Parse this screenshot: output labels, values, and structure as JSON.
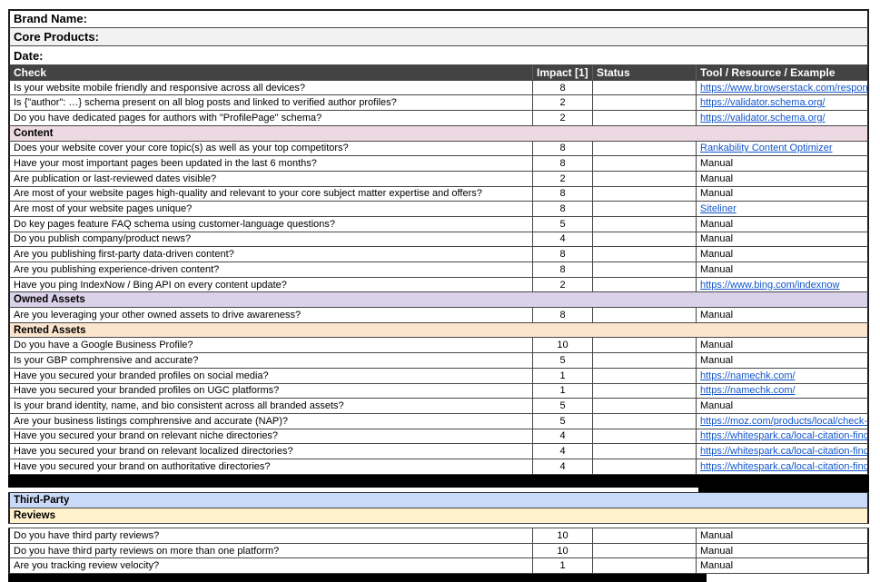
{
  "theme": {
    "header_bg": "#434343",
    "header_text": "#ffffff",
    "link_color": "#1155cc",
    "section_content_bg": "#ecd9e1",
    "section_owned_bg": "#d9d2e9",
    "section_rented_bg": "#fce5cd",
    "section_thirdparty_bg": "#c9daf8",
    "section_reviews_bg": "#fff2cc",
    "title_alt_bg": "#f2f2f2"
  },
  "columns": [
    "Check",
    "Impact [1]",
    "Status",
    "Tool / Resource / Example"
  ],
  "rows": [
    {
      "type": "title",
      "label": "Brand Name:",
      "bg": "#ffffff"
    },
    {
      "type": "title",
      "label": "Core Products:",
      "bg": "#f2f2f2"
    },
    {
      "type": "title",
      "label": "Date:",
      "bg": "#ffffff"
    },
    {
      "type": "header"
    },
    {
      "type": "item",
      "check": "Is your website mobile friendly and responsive across all devices?",
      "impact": "8",
      "status": "",
      "tool": "https://www.browserstack.com/respons",
      "tool_is_link": true
    },
    {
      "type": "item",
      "check": "Is {\"author\": …} schema present on all blog posts and linked to verified author profiles?",
      "impact": "2",
      "status": "",
      "tool": "https://validator.schema.org/",
      "tool_is_link": true
    },
    {
      "type": "item",
      "check": "Do you have dedicated pages for authors with \"ProfilePage\" schema?",
      "impact": "2",
      "status": "",
      "tool": "https://validator.schema.org/",
      "tool_is_link": true
    },
    {
      "type": "section",
      "label": "Content",
      "bg": "#ecd9e1"
    },
    {
      "type": "item",
      "check": "Does your website cover your core topic(s) as well as your top competitors?",
      "impact": "8",
      "status": "",
      "tool": "Rankability Content Optimizer",
      "tool_is_link": true
    },
    {
      "type": "item",
      "check": "Have your most important pages been updated in the last 6 months?",
      "impact": "8",
      "status": "",
      "tool": "Manual",
      "tool_is_link": false
    },
    {
      "type": "item",
      "check": "Are publication or last-reviewed dates visible?",
      "impact": "2",
      "status": "",
      "tool": "Manual",
      "tool_is_link": false
    },
    {
      "type": "item",
      "check": "Are most of your website pages high-quality and relevant to your core subject matter expertise and offers?",
      "impact": "8",
      "status": "",
      "tool": "Manual",
      "tool_is_link": false
    },
    {
      "type": "item",
      "check": "Are most of your website pages unique?",
      "impact": "8",
      "status": "",
      "tool": "Siteliner",
      "tool_is_link": true
    },
    {
      "type": "item",
      "check": "Do key pages feature FAQ schema using customer-language questions?",
      "impact": "5",
      "status": "",
      "tool": "Manual",
      "tool_is_link": false
    },
    {
      "type": "item",
      "check": "Do you publish company/product news?",
      "impact": "4",
      "status": "",
      "tool": "Manual",
      "tool_is_link": false
    },
    {
      "type": "item",
      "check": "Are you publishing first-party data-driven content?",
      "impact": "8",
      "status": "",
      "tool": "Manual",
      "tool_is_link": false
    },
    {
      "type": "item",
      "check": "Are you publishing experience-driven content?",
      "impact": "8",
      "status": "",
      "tool": "Manual",
      "tool_is_link": false
    },
    {
      "type": "item",
      "check": "Have you ping IndexNow / Bing API on every content update?",
      "impact": "2",
      "status": "",
      "tool": "https://www.bing.com/indexnow",
      "tool_is_link": true
    },
    {
      "type": "section",
      "label": "Owned Assets",
      "bg": "#d9d2e9"
    },
    {
      "type": "item",
      "check": "Are you leveraging your other owned assets to drive awareness?",
      "impact": "8",
      "status": "",
      "tool": "Manual",
      "tool_is_link": false
    },
    {
      "type": "section",
      "label": "Rented Assets",
      "bg": "#fce5cd"
    },
    {
      "type": "item",
      "check": "Do you have a Google Business Profile?",
      "impact": "10",
      "status": "",
      "tool": "Manual",
      "tool_is_link": false
    },
    {
      "type": "item",
      "check": "Is your GBP comphrensive and accurate?",
      "impact": "5",
      "status": "",
      "tool": "Manual",
      "tool_is_link": false
    },
    {
      "type": "item",
      "check": "Have you secured your branded profiles on social media?",
      "impact": "1",
      "status": "",
      "tool": "https://namechk.com/",
      "tool_is_link": true
    },
    {
      "type": "item",
      "check": "Have you secured your branded profiles on UGC platforms?",
      "impact": "1",
      "status": "",
      "tool": "https://namechk.com/",
      "tool_is_link": true
    },
    {
      "type": "item",
      "check": "Is your brand identity, name, and bio consistent across all branded assets?",
      "impact": "5",
      "status": "",
      "tool": "Manual",
      "tool_is_link": false
    },
    {
      "type": "item",
      "check": "Are your business listings comphrensive and accurate (NAP)?",
      "impact": "5",
      "status": "",
      "tool": "https://moz.com/products/local/check-lis",
      "tool_is_link": true
    },
    {
      "type": "item",
      "check": "Have you secured your brand on relevant niche directories?",
      "impact": "4",
      "status": "",
      "tool": "https://whitespark.ca/local-citation-finde",
      "tool_is_link": true
    },
    {
      "type": "item",
      "check": "Have you secured your brand on relevant localized directories?",
      "impact": "4",
      "status": "",
      "tool": "https://whitespark.ca/local-citation-finde",
      "tool_is_link": true
    },
    {
      "type": "item",
      "check": "Have you secured your brand on authoritative directories?",
      "impact": "4",
      "status": "",
      "tool": "https://whitespark.ca/local-citation-finde",
      "tool_is_link": true
    },
    {
      "type": "black-band"
    },
    {
      "type": "gap-split"
    },
    {
      "type": "section",
      "label": "Third-Party",
      "bg": "#c9daf8"
    },
    {
      "type": "section",
      "label": "Reviews",
      "bg": "#fff2cc"
    },
    {
      "type": "spacer"
    },
    {
      "type": "item",
      "check": "Do you have third party reviews?",
      "impact": "10",
      "status": "",
      "tool": "Manual",
      "tool_is_link": false
    },
    {
      "type": "item",
      "check": "Do you have third party reviews on more than one platform?",
      "impact": "10",
      "status": "",
      "tool": "Manual",
      "tool_is_link": false
    },
    {
      "type": "item",
      "check": "Are you tracking review velocity?",
      "impact": "1",
      "status": "",
      "tool": "Manual",
      "tool_is_link": false
    },
    {
      "type": "bottom-black"
    }
  ]
}
